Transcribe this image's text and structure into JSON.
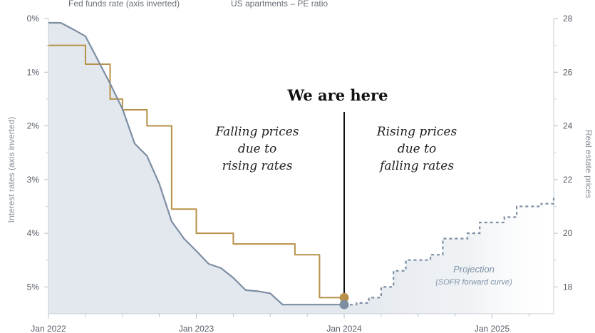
{
  "chart_data": {
    "type": "line",
    "legend": {
      "fed_label": "Fed funds rate (axis inverted)",
      "pe_label": "US apartments – PE ratio"
    },
    "x_ticks": [
      "Jan 2022",
      "Jan 2023",
      "Jan 2024",
      "Jan 2025"
    ],
    "x_tick_dates": [
      "2022-01",
      "2023-01",
      "2024-01",
      "2025-01"
    ],
    "x_range": [
      "2022-01",
      "2025-06"
    ],
    "left_axis": {
      "label": "Interest rates (axis inverted)",
      "range": [
        0,
        5.5
      ],
      "inverted": true,
      "ticks": [
        "0%",
        "1%",
        "2%",
        "3%",
        "4%",
        "5%"
      ],
      "tick_values": [
        0,
        1,
        2,
        3,
        4,
        5
      ]
    },
    "right_axis": {
      "label": "Real estate prices",
      "range": [
        17,
        28
      ],
      "ticks": [
        "18",
        "20",
        "22",
        "24",
        "26",
        "28"
      ],
      "tick_values": [
        18,
        20,
        22,
        24,
        26,
        28
      ]
    },
    "series": [
      {
        "name": "Fed funds rate (axis inverted)",
        "axis": "left",
        "color": "#7d8ea3",
        "points": [
          [
            "2022-01",
            0.08
          ],
          [
            "2022-02",
            0.08
          ],
          [
            "2022-03",
            0.2
          ],
          [
            "2022-04",
            0.33
          ],
          [
            "2022-05",
            0.77
          ],
          [
            "2022-06",
            1.21
          ],
          [
            "2022-07",
            1.68
          ],
          [
            "2022-08",
            2.33
          ],
          [
            "2022-09",
            2.56
          ],
          [
            "2022-10",
            3.08
          ],
          [
            "2022-11",
            3.78
          ],
          [
            "2022-12",
            4.1
          ],
          [
            "2023-01",
            4.33
          ],
          [
            "2023-02",
            4.57
          ],
          [
            "2023-03",
            4.65
          ],
          [
            "2023-04",
            4.83
          ],
          [
            "2023-05",
            5.06
          ],
          [
            "2023-06",
            5.08
          ],
          [
            "2023-07",
            5.12
          ],
          [
            "2023-08",
            5.33
          ],
          [
            "2023-09",
            5.33
          ],
          [
            "2023-10",
            5.33
          ],
          [
            "2023-11",
            5.33
          ],
          [
            "2023-12",
            5.33
          ],
          [
            "2024-01",
            5.33
          ]
        ]
      },
      {
        "name": "US apartments – PE ratio",
        "axis": "right",
        "color": "#b8914a",
        "points": [
          [
            "2022-01",
            27.0
          ],
          [
            "2022-02",
            27.0
          ],
          [
            "2022-03",
            27.0
          ],
          [
            "2022-04",
            26.3
          ],
          [
            "2022-05",
            26.3
          ],
          [
            "2022-06",
            25.0
          ],
          [
            "2022-07",
            24.6
          ],
          [
            "2022-08",
            24.6
          ],
          [
            "2022-09",
            24.0
          ],
          [
            "2022-10",
            24.0
          ],
          [
            "2022-11",
            20.9
          ],
          [
            "2022-12",
            20.9
          ],
          [
            "2023-01",
            20.0
          ],
          [
            "2023-02",
            20.0
          ],
          [
            "2023-03",
            20.0
          ],
          [
            "2023-04",
            19.6
          ],
          [
            "2023-05",
            19.6
          ],
          [
            "2023-06",
            19.6
          ],
          [
            "2023-07",
            19.6
          ],
          [
            "2023-08",
            19.6
          ],
          [
            "2023-09",
            19.2
          ],
          [
            "2023-10",
            19.2
          ],
          [
            "2023-11",
            17.6
          ],
          [
            "2023-12",
            17.6
          ],
          [
            "2024-01",
            17.6
          ]
        ]
      },
      {
        "name": "Projection",
        "subtitle": "(SOFR forward curve)",
        "axis": "left",
        "dashed": true,
        "color": "#7d8ea3",
        "points": [
          [
            "2024-01",
            5.33
          ],
          [
            "2024-02",
            5.3
          ],
          [
            "2024-03",
            5.2
          ],
          [
            "2024-04",
            5.0
          ],
          [
            "2024-05",
            4.7
          ],
          [
            "2024-06",
            4.5
          ],
          [
            "2024-07",
            4.5
          ],
          [
            "2024-08",
            4.4
          ],
          [
            "2024-09",
            4.1
          ],
          [
            "2024-10",
            4.1
          ],
          [
            "2024-11",
            4.0
          ],
          [
            "2024-12",
            3.8
          ],
          [
            "2025-01",
            3.8
          ],
          [
            "2025-02",
            3.7
          ],
          [
            "2025-03",
            3.5
          ],
          [
            "2025-04",
            3.5
          ],
          [
            "2025-05",
            3.45
          ],
          [
            "2025-06",
            3.3
          ]
        ]
      }
    ],
    "annotations": {
      "marker_date": "2024-01",
      "headline": "We are here",
      "left_text": [
        "Falling prices",
        "due to",
        "rising rates"
      ],
      "right_text": [
        "Rising prices",
        "due to",
        "falling rates"
      ],
      "projection_title": "Projection",
      "projection_subtitle": "(SOFR forward curve)"
    },
    "grid": false
  }
}
